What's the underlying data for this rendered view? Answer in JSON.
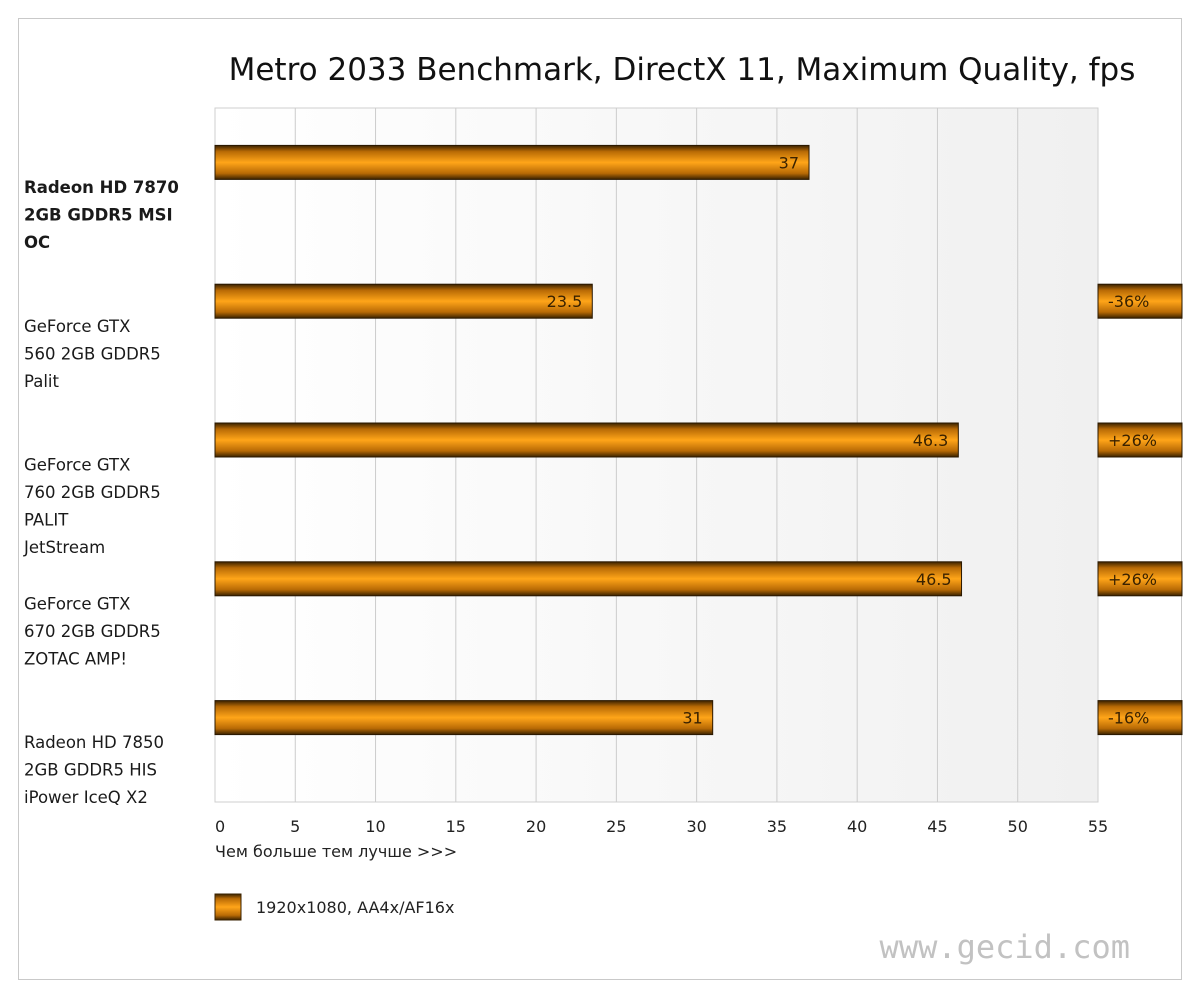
{
  "chart_data": {
    "type": "bar",
    "orientation": "horizontal",
    "title": "Metro 2033 Benchmark, DirectX 11, Maximum Quality, fps",
    "xlabel": "Чем больше тем лучше >>>",
    "xlim": [
      0,
      55
    ],
    "xticks": [
      0,
      5,
      10,
      15,
      20,
      25,
      30,
      35,
      40,
      45,
      50,
      55
    ],
    "grid": true,
    "legend_position": "bottom-left",
    "series": [
      {
        "name": "1920x1080, AA4x/AF16x",
        "color": "#f59a12"
      }
    ],
    "categories": [
      {
        "lines": [
          "Radeon HD 7870",
          "2GB GDDR5 MSI",
          "OC"
        ],
        "value": 37,
        "label": "37",
        "delta": "",
        "bold": true
      },
      {
        "lines": [
          "GeForce GTX",
          "560 2GB GDDR5",
          "Palit"
        ],
        "value": 23.5,
        "label": "23.5",
        "delta": "-36%",
        "bold": false
      },
      {
        "lines": [
          "GeForce GTX",
          "760 2GB GDDR5",
          "PALIT",
          "JetStream"
        ],
        "value": 46.3,
        "label": "46.3",
        "delta": "+26%",
        "bold": false
      },
      {
        "lines": [
          "GeForce GTX",
          "670 2GB GDDR5",
          "ZOTAC AMP!"
        ],
        "value": 46.5,
        "label": "46.5",
        "delta": "+26%",
        "bold": false
      },
      {
        "lines": [
          "Radeon HD 7850",
          "2GB GDDR5 HIS",
          "iPower IceQ X2"
        ],
        "value": 31,
        "label": "31",
        "delta": "-16%",
        "bold": false
      }
    ]
  },
  "watermark": "www.gecid.com"
}
